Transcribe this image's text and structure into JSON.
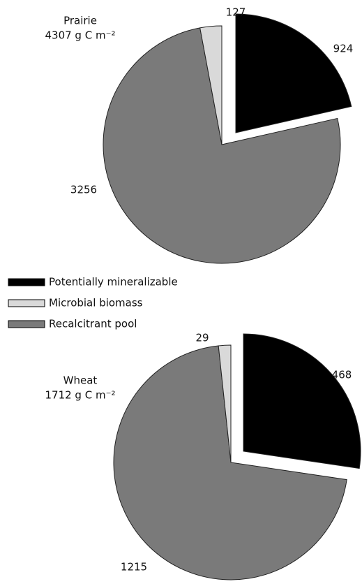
{
  "legend": {
    "labels": [
      "Potentially mineralizable",
      "Microbial biomass",
      "Recalcitrant pool"
    ],
    "colors": [
      "#000000",
      "#d9d9d9",
      "#7a7a7a"
    ]
  },
  "chart_data": [
    {
      "type": "pie",
      "title": "Prairie",
      "subtitle": "4307 g C m⁻²",
      "values": [
        924,
        127,
        3256
      ]
    },
    {
      "type": "pie",
      "title": "Wheat",
      "subtitle": "1712 g C m⁻²",
      "values": [
        468,
        29,
        1215
      ]
    }
  ]
}
